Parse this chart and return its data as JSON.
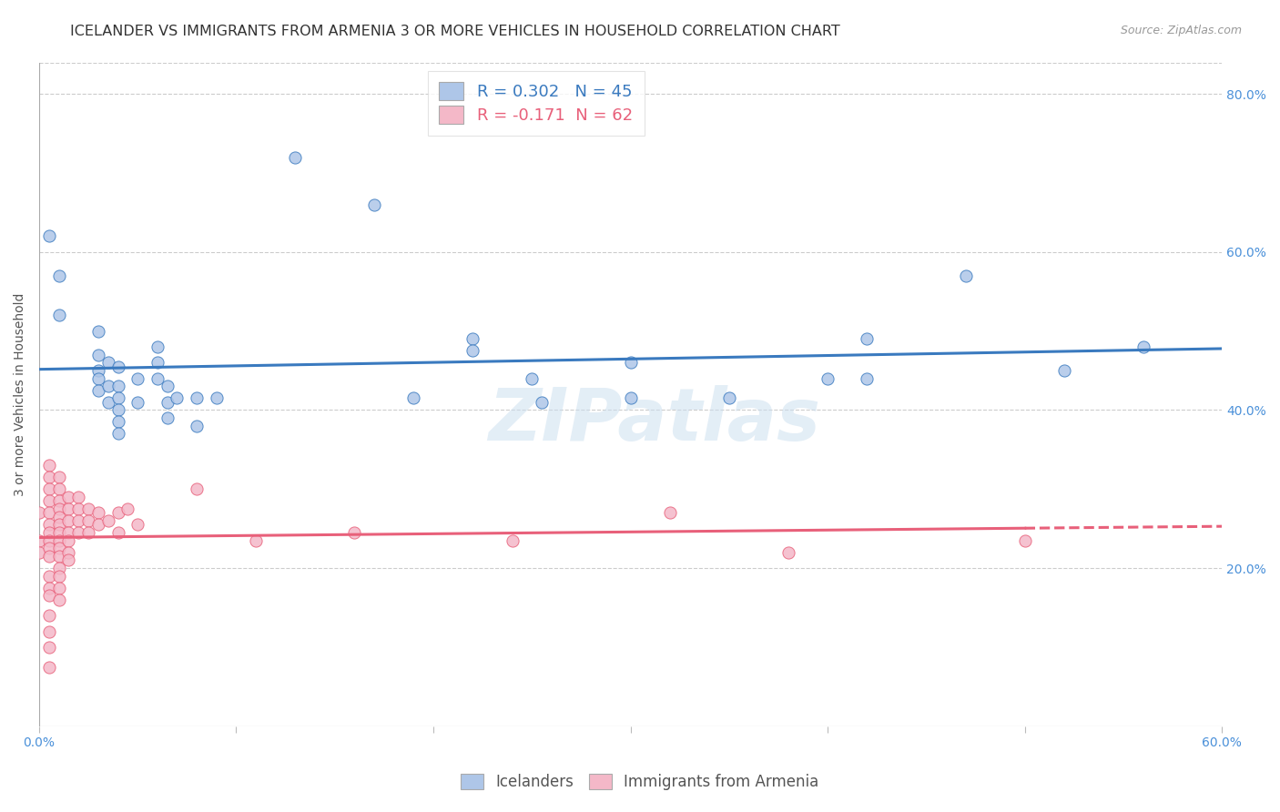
{
  "title": "ICELANDER VS IMMIGRANTS FROM ARMENIA 3 OR MORE VEHICLES IN HOUSEHOLD CORRELATION CHART",
  "source": "Source: ZipAtlas.com",
  "ylabel": "3 or more Vehicles in Household",
  "xmin": 0.0,
  "xmax": 0.6,
  "ymin": 0.0,
  "ymax": 0.84,
  "icelanders_color": "#aec6e8",
  "immigrants_color": "#f4b8c8",
  "icelanders_line_color": "#3a7abf",
  "immigrants_line_color": "#e8607a",
  "R_icelanders": 0.302,
  "N_icelanders": 45,
  "R_immigrants": -0.171,
  "N_immigrants": 62,
  "icelanders_scatter": [
    [
      0.005,
      0.62
    ],
    [
      0.01,
      0.57
    ],
    [
      0.01,
      0.52
    ],
    [
      0.03,
      0.5
    ],
    [
      0.03,
      0.47
    ],
    [
      0.03,
      0.45
    ],
    [
      0.03,
      0.44
    ],
    [
      0.03,
      0.425
    ],
    [
      0.035,
      0.46
    ],
    [
      0.035,
      0.43
    ],
    [
      0.035,
      0.41
    ],
    [
      0.04,
      0.455
    ],
    [
      0.04,
      0.43
    ],
    [
      0.04,
      0.415
    ],
    [
      0.04,
      0.4
    ],
    [
      0.04,
      0.385
    ],
    [
      0.04,
      0.37
    ],
    [
      0.05,
      0.44
    ],
    [
      0.05,
      0.41
    ],
    [
      0.06,
      0.48
    ],
    [
      0.06,
      0.46
    ],
    [
      0.06,
      0.44
    ],
    [
      0.065,
      0.43
    ],
    [
      0.065,
      0.41
    ],
    [
      0.065,
      0.39
    ],
    [
      0.07,
      0.415
    ],
    [
      0.08,
      0.415
    ],
    [
      0.08,
      0.38
    ],
    [
      0.09,
      0.415
    ],
    [
      0.13,
      0.72
    ],
    [
      0.17,
      0.66
    ],
    [
      0.19,
      0.415
    ],
    [
      0.22,
      0.49
    ],
    [
      0.22,
      0.475
    ],
    [
      0.25,
      0.44
    ],
    [
      0.255,
      0.41
    ],
    [
      0.3,
      0.415
    ],
    [
      0.3,
      0.46
    ],
    [
      0.35,
      0.415
    ],
    [
      0.4,
      0.44
    ],
    [
      0.42,
      0.49
    ],
    [
      0.42,
      0.44
    ],
    [
      0.47,
      0.57
    ],
    [
      0.52,
      0.45
    ],
    [
      0.56,
      0.48
    ]
  ],
  "immigrants_scatter": [
    [
      0.0,
      0.27
    ],
    [
      0.0,
      0.235
    ],
    [
      0.0,
      0.22
    ],
    [
      0.005,
      0.33
    ],
    [
      0.005,
      0.315
    ],
    [
      0.005,
      0.3
    ],
    [
      0.005,
      0.285
    ],
    [
      0.005,
      0.27
    ],
    [
      0.005,
      0.255
    ],
    [
      0.005,
      0.245
    ],
    [
      0.005,
      0.235
    ],
    [
      0.005,
      0.225
    ],
    [
      0.005,
      0.215
    ],
    [
      0.005,
      0.19
    ],
    [
      0.005,
      0.175
    ],
    [
      0.005,
      0.165
    ],
    [
      0.005,
      0.14
    ],
    [
      0.005,
      0.12
    ],
    [
      0.005,
      0.1
    ],
    [
      0.005,
      0.075
    ],
    [
      0.01,
      0.315
    ],
    [
      0.01,
      0.3
    ],
    [
      0.01,
      0.285
    ],
    [
      0.01,
      0.275
    ],
    [
      0.01,
      0.265
    ],
    [
      0.01,
      0.255
    ],
    [
      0.01,
      0.245
    ],
    [
      0.01,
      0.235
    ],
    [
      0.01,
      0.225
    ],
    [
      0.01,
      0.215
    ],
    [
      0.01,
      0.2
    ],
    [
      0.01,
      0.19
    ],
    [
      0.01,
      0.175
    ],
    [
      0.01,
      0.16
    ],
    [
      0.015,
      0.29
    ],
    [
      0.015,
      0.275
    ],
    [
      0.015,
      0.26
    ],
    [
      0.015,
      0.245
    ],
    [
      0.015,
      0.235
    ],
    [
      0.015,
      0.22
    ],
    [
      0.015,
      0.21
    ],
    [
      0.02,
      0.29
    ],
    [
      0.02,
      0.275
    ],
    [
      0.02,
      0.26
    ],
    [
      0.02,
      0.245
    ],
    [
      0.025,
      0.275
    ],
    [
      0.025,
      0.26
    ],
    [
      0.025,
      0.245
    ],
    [
      0.03,
      0.27
    ],
    [
      0.03,
      0.255
    ],
    [
      0.035,
      0.26
    ],
    [
      0.04,
      0.27
    ],
    [
      0.04,
      0.245
    ],
    [
      0.045,
      0.275
    ],
    [
      0.05,
      0.255
    ],
    [
      0.08,
      0.3
    ],
    [
      0.11,
      0.235
    ],
    [
      0.16,
      0.245
    ],
    [
      0.24,
      0.235
    ],
    [
      0.32,
      0.27
    ],
    [
      0.38,
      0.22
    ],
    [
      0.5,
      0.235
    ]
  ],
  "watermark": "ZIPatlas",
  "background_color": "#ffffff",
  "grid_color": "#cccccc",
  "title_fontsize": 11.5,
  "axis_label_fontsize": 10,
  "tick_fontsize": 10,
  "legend_fontsize": 13
}
